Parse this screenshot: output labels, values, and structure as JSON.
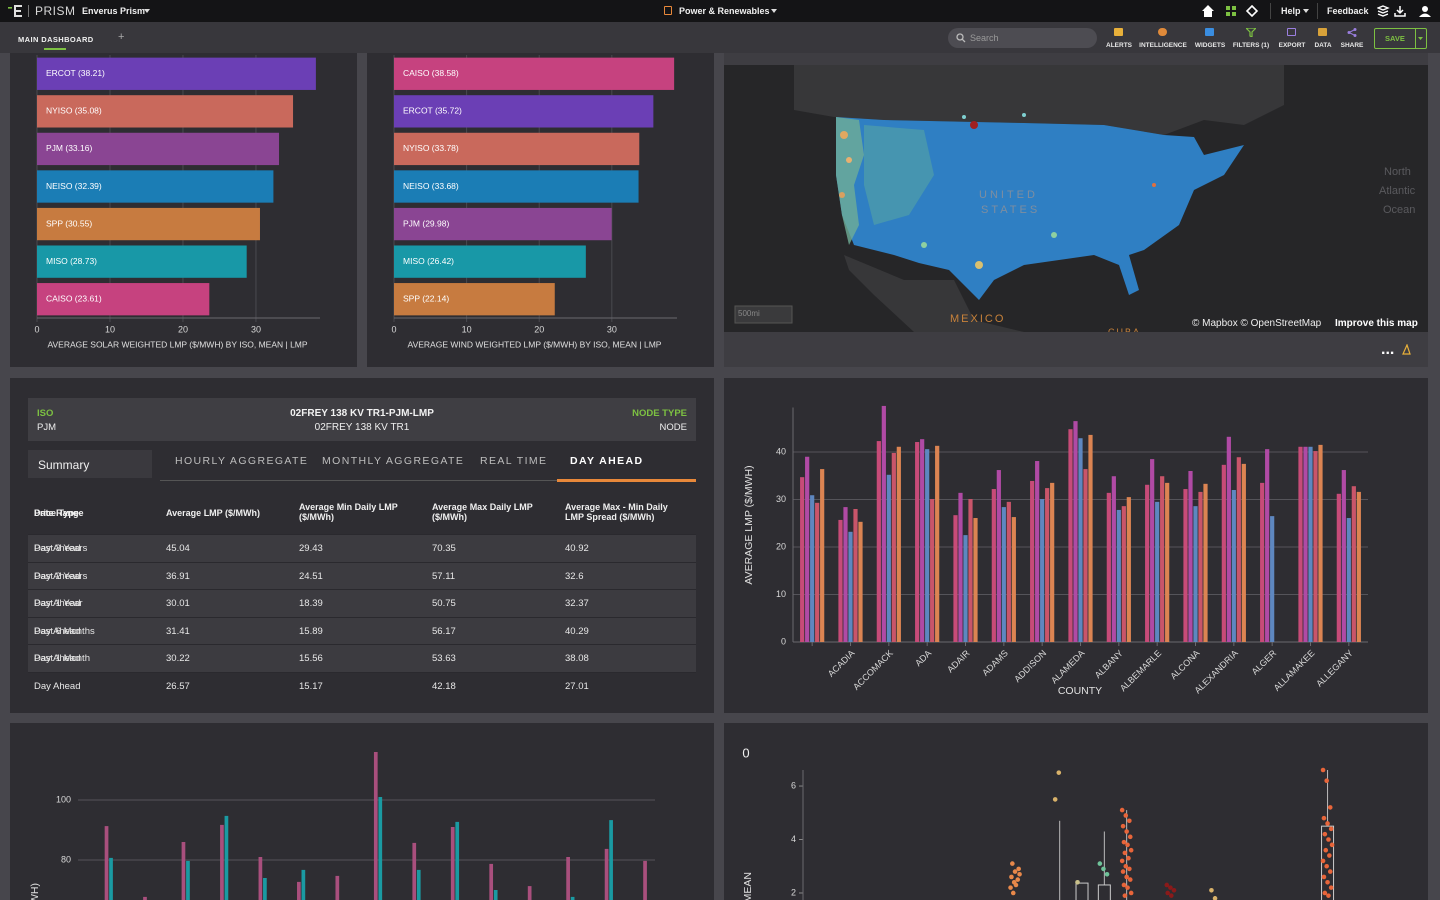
{
  "header": {
    "product": "PRISM",
    "workspace": "Enverus Prism",
    "module": "Power & Renewables",
    "help": "Help",
    "feedback": "Feedback"
  },
  "dashboard": {
    "tab": "MAIN DASHBOARD",
    "add_tab": "+",
    "search": "Search",
    "toolbar": [
      "ALERTS",
      "INTELLIGENCE",
      "WIDGETS",
      "FILTERS (1)",
      "EXPORT",
      "DATA",
      "SHARE"
    ],
    "save": "SAVE"
  },
  "map": {
    "labels": {
      "us_line1": "UNITED",
      "us_line2": "STATES",
      "ocean_line1": "North",
      "ocean_line2": "Atlantic",
      "ocean_line3": "Ocean",
      "mexico": "MEXICO",
      "cuba": "CUBA"
    },
    "scale": "500mi",
    "attribution": "© Mapbox © OpenStreetMap",
    "improve": "Improve this map",
    "menu": "..."
  },
  "node_panel": {
    "iso_label": "ISO",
    "iso": "PJM",
    "node_title": "02FREY 138 KV TR1-PJM-LMP",
    "node_subtitle": "02FREY 138 KV TR1",
    "node_type_label": "NODE TYPE",
    "node_type": "NODE",
    "side_tab": "Summary",
    "tabs": [
      "HOURLY AGGREGATE",
      "MONTHLY AGGREGATE",
      "REAL TIME",
      "DAY AHEAD"
    ]
  },
  "table": {
    "header": {
      "period": "Date Range",
      "price_type": "Price Type",
      "columns": [
        "Average LMP ($/MWh)",
        "Average Min Daily LMP ($/MWh)",
        "Average Max Daily LMP ($/MWh)",
        "Average Max - Min Daily LMP Spread ($/MWh)"
      ]
    },
    "rows": [
      {
        "period": "Past 3 Years",
        "price_type": "Day Ahead",
        "values": [
          45.04,
          29.43,
          70.35,
          40.92
        ]
      },
      {
        "period": "Past 2 Years",
        "price_type": "Day Ahead",
        "values": [
          36.91,
          24.51,
          57.11,
          32.6
        ]
      },
      {
        "period": "Past 1 Year",
        "price_type": "Day Ahead",
        "values": [
          30.01,
          18.39,
          50.75,
          32.37
        ]
      },
      {
        "period": "Past 6 Months",
        "price_type": "Day Ahead",
        "values": [
          31.41,
          15.89,
          56.17,
          40.29
        ]
      },
      {
        "period": "Past 1 Month",
        "price_type": "Day Ahead",
        "values": [
          30.22,
          15.56,
          53.63,
          38.08
        ]
      },
      {
        "price_type": "Day Ahead",
        "values": [
          26.57,
          15.17,
          42.18,
          27.01
        ]
      }
    ]
  },
  "chart_data": [
    {
      "type": "bar",
      "orientation": "horizontal",
      "categories": [
        "ERCOT (38.21)",
        "NYISO (35.08)",
        "PJM (33.16)",
        "NEISO (32.39)",
        "SPP (30.55)",
        "MISO (28.73)",
        "CAISO (23.61)"
      ],
      "values": [
        38.21,
        35.08,
        33.16,
        32.39,
        30.55,
        28.73,
        23.61
      ],
      "colors": [
        "#6b3fb5",
        "#c9695c",
        "#8a4593",
        "#1b7db5",
        "#c77b40",
        "#1898a7",
        "#c6427f"
      ],
      "xlabel": "AVERAGE SOLAR WEIGHTED LMP ($/MWH) BY ISO, MEAN | LMP",
      "xlim": [
        0,
        38.5
      ],
      "xticks": [
        0,
        10,
        20,
        30
      ],
      "grid": true
    },
    {
      "type": "bar",
      "orientation": "horizontal",
      "categories": [
        "CAISO (38.58)",
        "ERCOT (35.72)",
        "NYISO (33.78)",
        "NEISO (33.68)",
        "PJM (29.98)",
        "MISO (26.42)",
        "SPP (22.14)"
      ],
      "values": [
        38.58,
        35.72,
        33.78,
        33.68,
        29.98,
        26.42,
        22.14
      ],
      "colors": [
        "#c6427f",
        "#6b3fb5",
        "#c9695c",
        "#1b7db5",
        "#8a4593",
        "#1898a7",
        "#c77b40"
      ],
      "xlabel": "AVERAGE WIND WEIGHTED LMP ($/MWH) BY ISO, MEAN | LMP",
      "xlim": [
        0,
        38.7
      ],
      "xticks": [
        0,
        10,
        20,
        30
      ],
      "grid": true
    },
    {
      "type": "bar",
      "orientation": "vertical",
      "categories": [
        null,
        "ACADIA",
        "ACCOMACK",
        "ADA",
        "ADAIR",
        "ADAMS",
        "ADDISON",
        "ALAMEDA",
        "ALBANY",
        "ALBEMARLE",
        "ALCONA",
        "ALEXANDRIA",
        "ALGER",
        "ALLAMAKEE",
        "ALLEGANY"
      ],
      "series": [
        {
          "color": "#c74b78",
          "values": [
            34.7,
            25.7,
            42.3,
            42.1,
            26.7,
            32.2,
            33.9,
            44.8,
            31.4,
            33.1,
            32.2,
            37.3,
            33.5,
            41.1,
            31.2
          ]
        },
        {
          "color": "#b04aa5",
          "values": [
            39.0,
            28.4,
            49.7,
            42.7,
            31.4,
            36.2,
            38.1,
            46.5,
            34.9,
            38.5,
            36.0,
            43.2,
            40.6,
            41.1,
            36.2
          ]
        },
        {
          "color": "#5e87c0",
          "values": [
            30.9,
            23.2,
            35.2,
            40.6,
            22.5,
            28.4,
            30.1,
            42.9,
            27.8,
            29.5,
            28.6,
            32.0,
            26.5,
            41.1,
            26.1
          ]
        },
        {
          "color": "#c9556a",
          "values": [
            29.3,
            28.0,
            39.8,
            30.1,
            30.1,
            29.5,
            32.4,
            36.4,
            28.6,
            34.9,
            31.6,
            38.9,
            null,
            40.2,
            32.8
          ]
        },
        {
          "color": "#dc8452",
          "values": [
            36.4,
            25.3,
            41.1,
            41.3,
            26.1,
            26.3,
            33.5,
            43.6,
            30.5,
            33.5,
            33.3,
            37.5,
            null,
            41.5,
            31.6
          ]
        }
      ],
      "xlabel": "COUNTY",
      "ylabel": "AVERAGE LMP ($/MWH)",
      "ylim": [
        0,
        50
      ],
      "yticks": [
        0,
        10,
        20,
        30,
        40
      ],
      "grid": true
    },
    {
      "type": "bar",
      "orientation": "vertical",
      "series": [
        {
          "color": "#a94f7d",
          "values": [
            91.3,
            67.7,
            86.0,
            91.7,
            81.0,
            72.7,
            74.7,
            116.0,
            85.7,
            91.0,
            78.7,
            71.3,
            81.0,
            83.7,
            79.7
          ]
        },
        {
          "color": "#1a9aa2",
          "values": [
            80.7,
            null,
            79.7,
            94.7,
            74.0,
            76.7,
            null,
            101.0,
            76.7,
            92.7,
            70.0,
            null,
            67.7,
            93.3,
            null
          ]
        }
      ],
      "ylabel": "WH)",
      "ylim": [
        66,
        118
      ],
      "yticks": [
        80,
        100
      ],
      "grid": true
    },
    {
      "type": "box",
      "title": "0",
      "ylabel": "MEAN",
      "ylim": [
        1.7,
        6.6
      ],
      "yticks": [
        2,
        4,
        6
      ],
      "groups": [
        null,
        null,
        null,
        null,
        null,
        null,
        null,
        null,
        null,
        {
          "color": "#e8884a",
          "points": [
            2.2,
            2.4,
            2.5,
            2.6,
            2.8,
            2.9,
            3.1,
            2.3,
            2.7,
            2.0
          ]
        },
        null,
        {
          "color": "#d9b26a",
          "points": [
            5.5,
            6.5
          ],
          "whisker": [
            1.7,
            4.7
          ]
        },
        {
          "color": "#c9c08a",
          "points": [
            2.4
          ],
          "box": [
            1.7,
            2.37
          ]
        },
        {
          "color": "#6fc39a",
          "points": [
            3.1,
            2.9,
            2.7
          ],
          "box": [
            1.7,
            2.3
          ],
          "whisker": [
            1.7,
            4.3
          ]
        },
        {
          "color": "#e8653a",
          "points": [
            5.1,
            4.9,
            4.7,
            4.5,
            4.3,
            4.1,
            3.9,
            3.8,
            3.6,
            3.5,
            3.3,
            3.2,
            3.0,
            2.9,
            2.8,
            2.6,
            2.5,
            2.3,
            2.2,
            2.0,
            1.9
          ],
          "whisker": [
            1.7,
            5.1
          ]
        },
        null,
        {
          "color": "#8a1a1a",
          "points": [
            2.3,
            2.2,
            2.1,
            2.0,
            1.9
          ]
        },
        null,
        {
          "color": "#d9b26a",
          "points": [
            2.1,
            1.8
          ]
        },
        null,
        null,
        null,
        null,
        {
          "color": "#e8653a",
          "points": [
            6.6,
            6.2,
            5.2,
            4.8,
            4.6,
            4.4,
            4.2,
            4.0,
            3.8,
            3.6,
            3.4,
            3.2,
            3.0,
            2.8,
            2.6,
            2.4,
            2.2,
            2.0,
            1.9
          ],
          "box": [
            1.7,
            4.5
          ],
          "whisker": [
            1.7,
            6.6
          ]
        },
        null,
        null,
        null,
        null
      ]
    }
  ]
}
